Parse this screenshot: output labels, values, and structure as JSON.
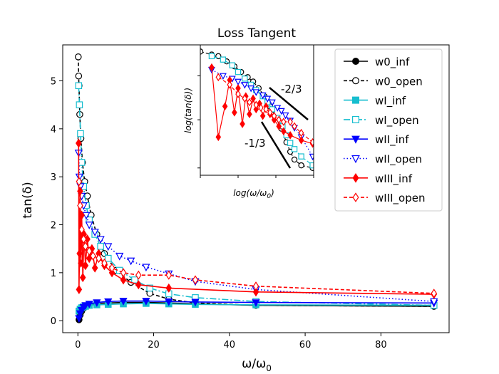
{
  "chart_data": {
    "type": "line",
    "title": "Loss Tangent",
    "xlabel": "ω/ω",
    "xlabel_sub": "0",
    "ylabel": "tan(δ)",
    "xlim": [
      -4,
      98
    ],
    "ylim": [
      -0.25,
      5.75
    ],
    "xticks": [
      0,
      20,
      40,
      60,
      80
    ],
    "yticks": [
      0,
      1,
      2,
      3,
      4,
      5
    ],
    "legend_position": "upper right",
    "series": [
      {
        "name": "w0_inf",
        "color": "#000000",
        "dash": "",
        "marker": "circle",
        "filled": true,
        "x": [
          0.3,
          0.6,
          1,
          1.5,
          2,
          3,
          5,
          8,
          12,
          18,
          24,
          31,
          47,
          94
        ],
        "y": [
          0.02,
          0.12,
          0.2,
          0.26,
          0.3,
          0.33,
          0.36,
          0.37,
          0.38,
          0.38,
          0.37,
          0.35,
          0.32,
          0.3
        ]
      },
      {
        "name": "w0_open",
        "color": "#000000",
        "dash": "5,3",
        "marker": "circle",
        "filled": false,
        "x": [
          0.1,
          0.2,
          0.3,
          0.5,
          0.8,
          1.2,
          1.8,
          2.5,
          3.5,
          5,
          7,
          10,
          14,
          19,
          24,
          31,
          47,
          94
        ],
        "y": [
          5.5,
          5.1,
          4.9,
          4.3,
          3.8,
          3.3,
          2.9,
          2.6,
          2.2,
          1.8,
          1.4,
          1.05,
          0.8,
          0.57,
          0.45,
          0.37,
          0.32,
          0.3
        ]
      },
      {
        "name": "wI_inf",
        "color": "#17becf",
        "dash": "",
        "marker": "square",
        "filled": true,
        "x": [
          0.3,
          0.6,
          1,
          1.5,
          2,
          3,
          5,
          8,
          12,
          18,
          24,
          31,
          47,
          94
        ],
        "y": [
          0.2,
          0.24,
          0.27,
          0.29,
          0.3,
          0.32,
          0.33,
          0.34,
          0.35,
          0.36,
          0.35,
          0.34,
          0.33,
          0.32
        ]
      },
      {
        "name": "wI_open",
        "color": "#17becf",
        "dash": "9,3,2,3",
        "marker": "square",
        "filled": false,
        "x": [
          0.2,
          0.4,
          0.7,
          1,
          1.5,
          2.2,
          3,
          4.5,
          6,
          8,
          11,
          15,
          19,
          24,
          31,
          47,
          94
        ],
        "y": [
          4.9,
          4.5,
          3.9,
          3.3,
          2.8,
          2.4,
          2.1,
          1.8,
          1.55,
          1.3,
          1.05,
          0.85,
          0.68,
          0.56,
          0.48,
          0.4,
          0.32
        ]
      },
      {
        "name": "wII_inf",
        "color": "#0000ff",
        "dash": "",
        "marker": "triangle-down",
        "filled": true,
        "x": [
          0.3,
          0.6,
          1,
          1.5,
          2,
          3,
          5,
          8,
          12,
          18,
          24,
          31,
          47,
          94
        ],
        "y": [
          0.05,
          0.15,
          0.22,
          0.28,
          0.32,
          0.35,
          0.38,
          0.4,
          0.41,
          0.41,
          0.4,
          0.39,
          0.38,
          0.37
        ]
      },
      {
        "name": "wII_open",
        "color": "#0000ff",
        "dash": "1.5,3",
        "marker": "triangle-down",
        "filled": false,
        "x": [
          0.2,
          0.4,
          0.7,
          1,
          1.5,
          2.2,
          3,
          4.5,
          6,
          8,
          11,
          14,
          18,
          24,
          31,
          47,
          94
        ],
        "y": [
          3.5,
          3.0,
          2.8,
          2.6,
          2.4,
          2.2,
          2.0,
          1.85,
          1.7,
          1.55,
          1.35,
          1.25,
          1.12,
          0.98,
          0.82,
          0.65,
          0.4
        ]
      },
      {
        "name": "wIII_inf",
        "color": "#ff0000",
        "dash": "",
        "marker": "diamond",
        "filled": true,
        "x": [
          0.2,
          0.3,
          0.45,
          0.6,
          0.8,
          1,
          1.3,
          1.6,
          2,
          2.5,
          3,
          3.7,
          4.5,
          5.5,
          7,
          9,
          12,
          16,
          24,
          47,
          94
        ],
        "y": [
          3.7,
          0.65,
          1.4,
          2.7,
          1.2,
          2.2,
          0.9,
          1.8,
          1.15,
          1.7,
          1.3,
          1.5,
          1.1,
          1.4,
          1.15,
          1.0,
          0.85,
          0.75,
          0.68,
          0.6,
          0.55
        ]
      },
      {
        "name": "wIII_open",
        "color": "#ff0000",
        "dash": "5,3",
        "marker": "diamond",
        "filled": false,
        "x": [
          0.3,
          0.6,
          1,
          1.5,
          2,
          3,
          4,
          5.5,
          7,
          9,
          12,
          16,
          24,
          31,
          47,
          94
        ],
        "y": [
          2.9,
          2.4,
          1.9,
          1.7,
          1.55,
          1.45,
          1.35,
          1.3,
          1.2,
          1.1,
          1.0,
          0.95,
          0.95,
          0.85,
          0.72,
          0.57
        ]
      }
    ],
    "inset": {
      "xlabel": "log(ω/ω",
      "xlabel_sub": "0",
      "xlabel_end": ")",
      "ylabel": "log(tan(δ))",
      "slope_labels": [
        "-2/3",
        "-1/3"
      ]
    }
  }
}
